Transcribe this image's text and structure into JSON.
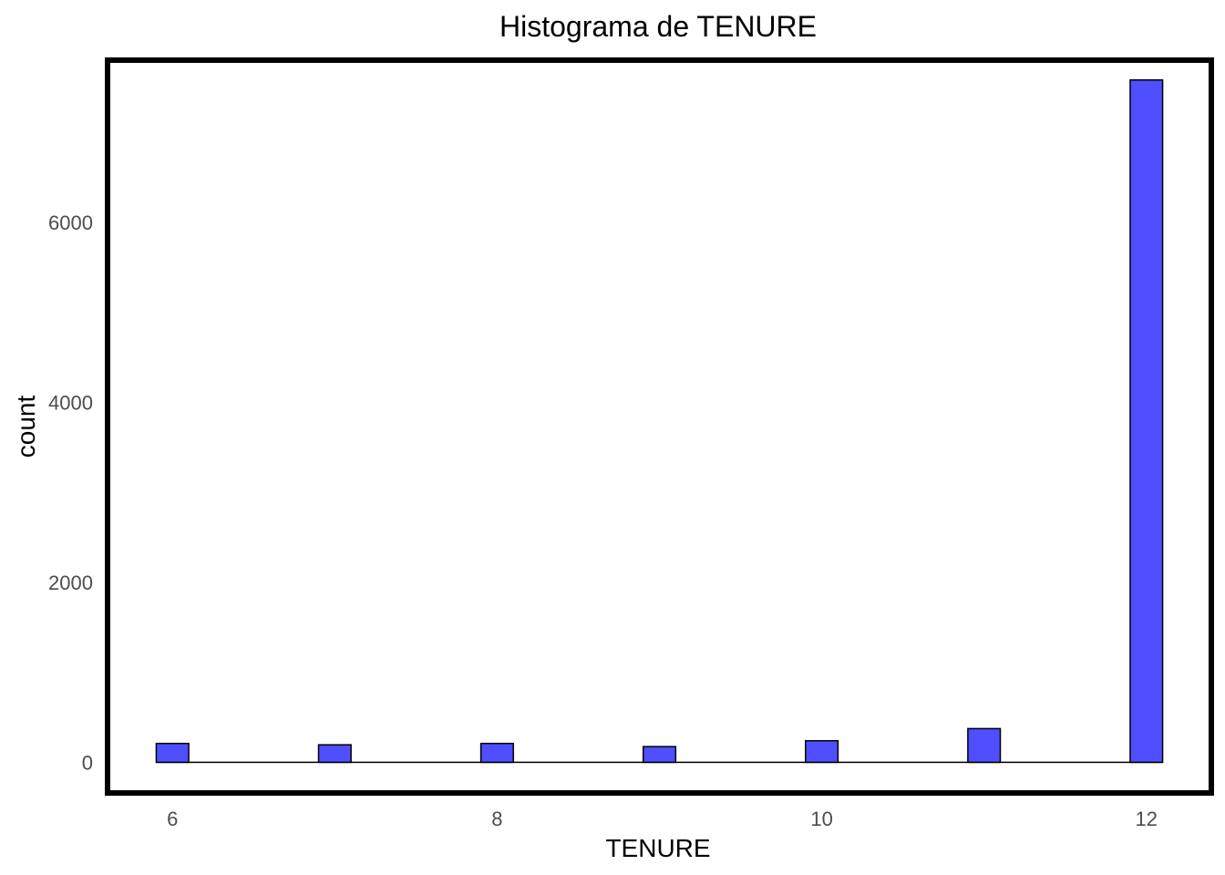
{
  "chart_data": {
    "type": "bar",
    "title": "Histograma de TENURE",
    "xlabel": "TENURE",
    "ylabel": "count",
    "x_ticks": [
      6,
      8,
      10,
      12
    ],
    "y_ticks": [
      0,
      2000,
      4000,
      6000
    ],
    "xlim": [
      5.6,
      12.4
    ],
    "ylim": [
      -340,
      7800
    ],
    "bin_width": 0.2,
    "bins": [
      {
        "x": 6,
        "count": 210
      },
      {
        "x": 7,
        "count": 195
      },
      {
        "x": 8,
        "count": 210
      },
      {
        "x": 9,
        "count": 175
      },
      {
        "x": 10,
        "count": 240
      },
      {
        "x": 11,
        "count": 375
      },
      {
        "x": 12,
        "count": 7580
      }
    ],
    "bar_color": "#4f4fff",
    "bar_edge_color": "#000000",
    "grid": false,
    "legend": "none"
  }
}
